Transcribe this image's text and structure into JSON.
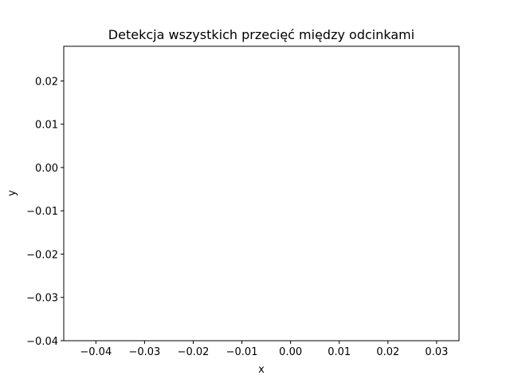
{
  "chart_data": {
    "type": "line",
    "title": "Detekcja wszystkich przecięć między odcinkami",
    "xlabel": "x",
    "ylabel": "y",
    "xlim": [
      -0.0466,
      0.0346
    ],
    "ylim": [
      -0.04,
      0.028
    ],
    "x_ticks": [
      {
        "value": -0.04,
        "label": "−0.04"
      },
      {
        "value": -0.03,
        "label": "−0.03"
      },
      {
        "value": -0.02,
        "label": "−0.02"
      },
      {
        "value": -0.01,
        "label": "−0.01"
      },
      {
        "value": 0.0,
        "label": "0.00"
      },
      {
        "value": 0.01,
        "label": "0.01"
      },
      {
        "value": 0.02,
        "label": "0.02"
      },
      {
        "value": 0.03,
        "label": "0.03"
      }
    ],
    "y_ticks": [
      {
        "value": 0.02,
        "label": "0.02"
      },
      {
        "value": 0.01,
        "label": "0.01"
      },
      {
        "value": 0.0,
        "label": "0.00"
      },
      {
        "value": -0.01,
        "label": "−0.01"
      },
      {
        "value": -0.02,
        "label": "−0.02"
      },
      {
        "value": -0.03,
        "label": "−0.03"
      },
      {
        "value": -0.04,
        "label": "−0.04"
      }
    ],
    "series": [],
    "grid": false,
    "legend": "none",
    "colors": {
      "axes": "#000000",
      "background": "#ffffff"
    }
  }
}
